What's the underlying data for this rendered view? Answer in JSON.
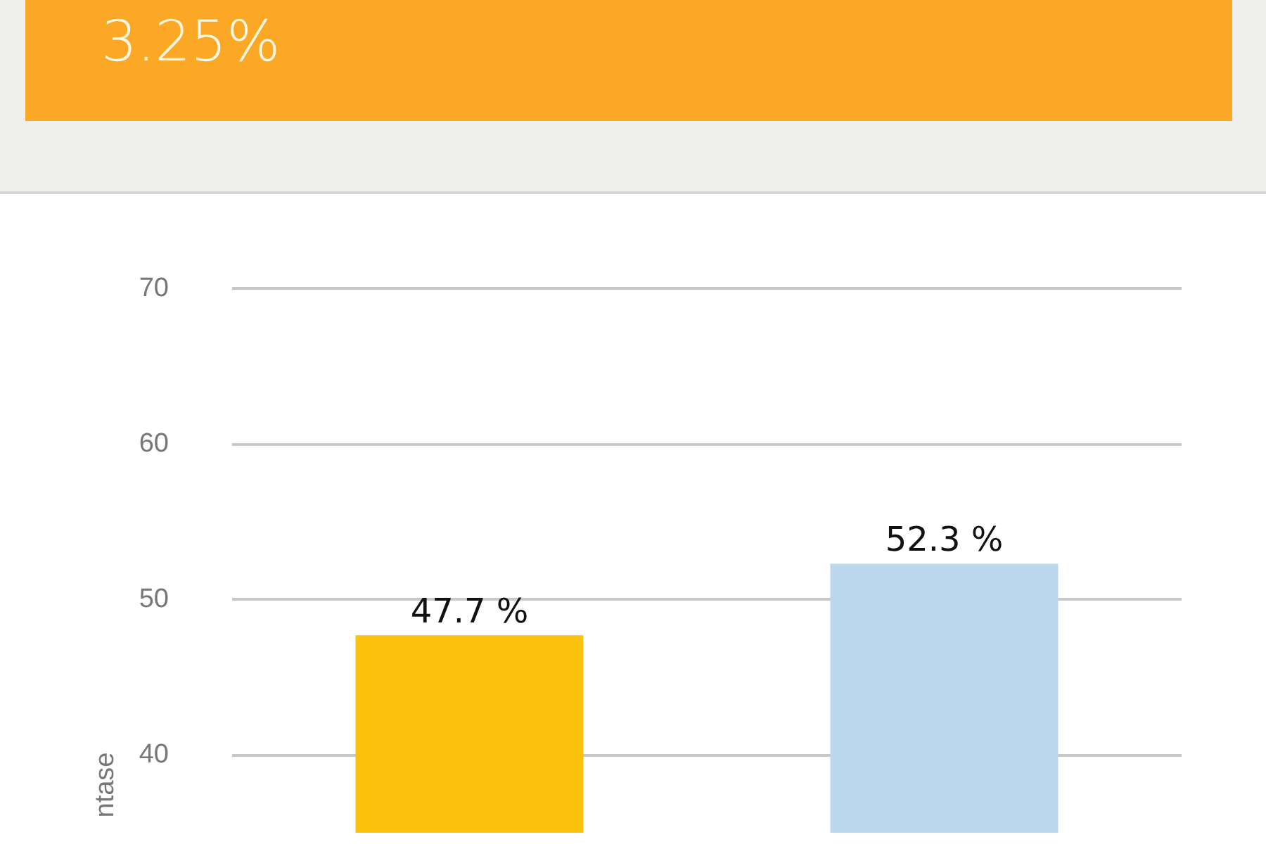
{
  "chart_data": {
    "type": "bar",
    "title": "3.25%",
    "ylabel": "ntase",
    "categories": [
      null,
      null
    ],
    "values": [
      47.7,
      52.3
    ],
    "colors": [
      "#fcc10f",
      "#bdd7ee"
    ],
    "value_labels": [
      "47.7 %",
      "52.3 %"
    ],
    "ylim": [
      35,
      70
    ],
    "yticks": [
      40,
      50,
      60,
      70
    ],
    "grid": "y"
  }
}
